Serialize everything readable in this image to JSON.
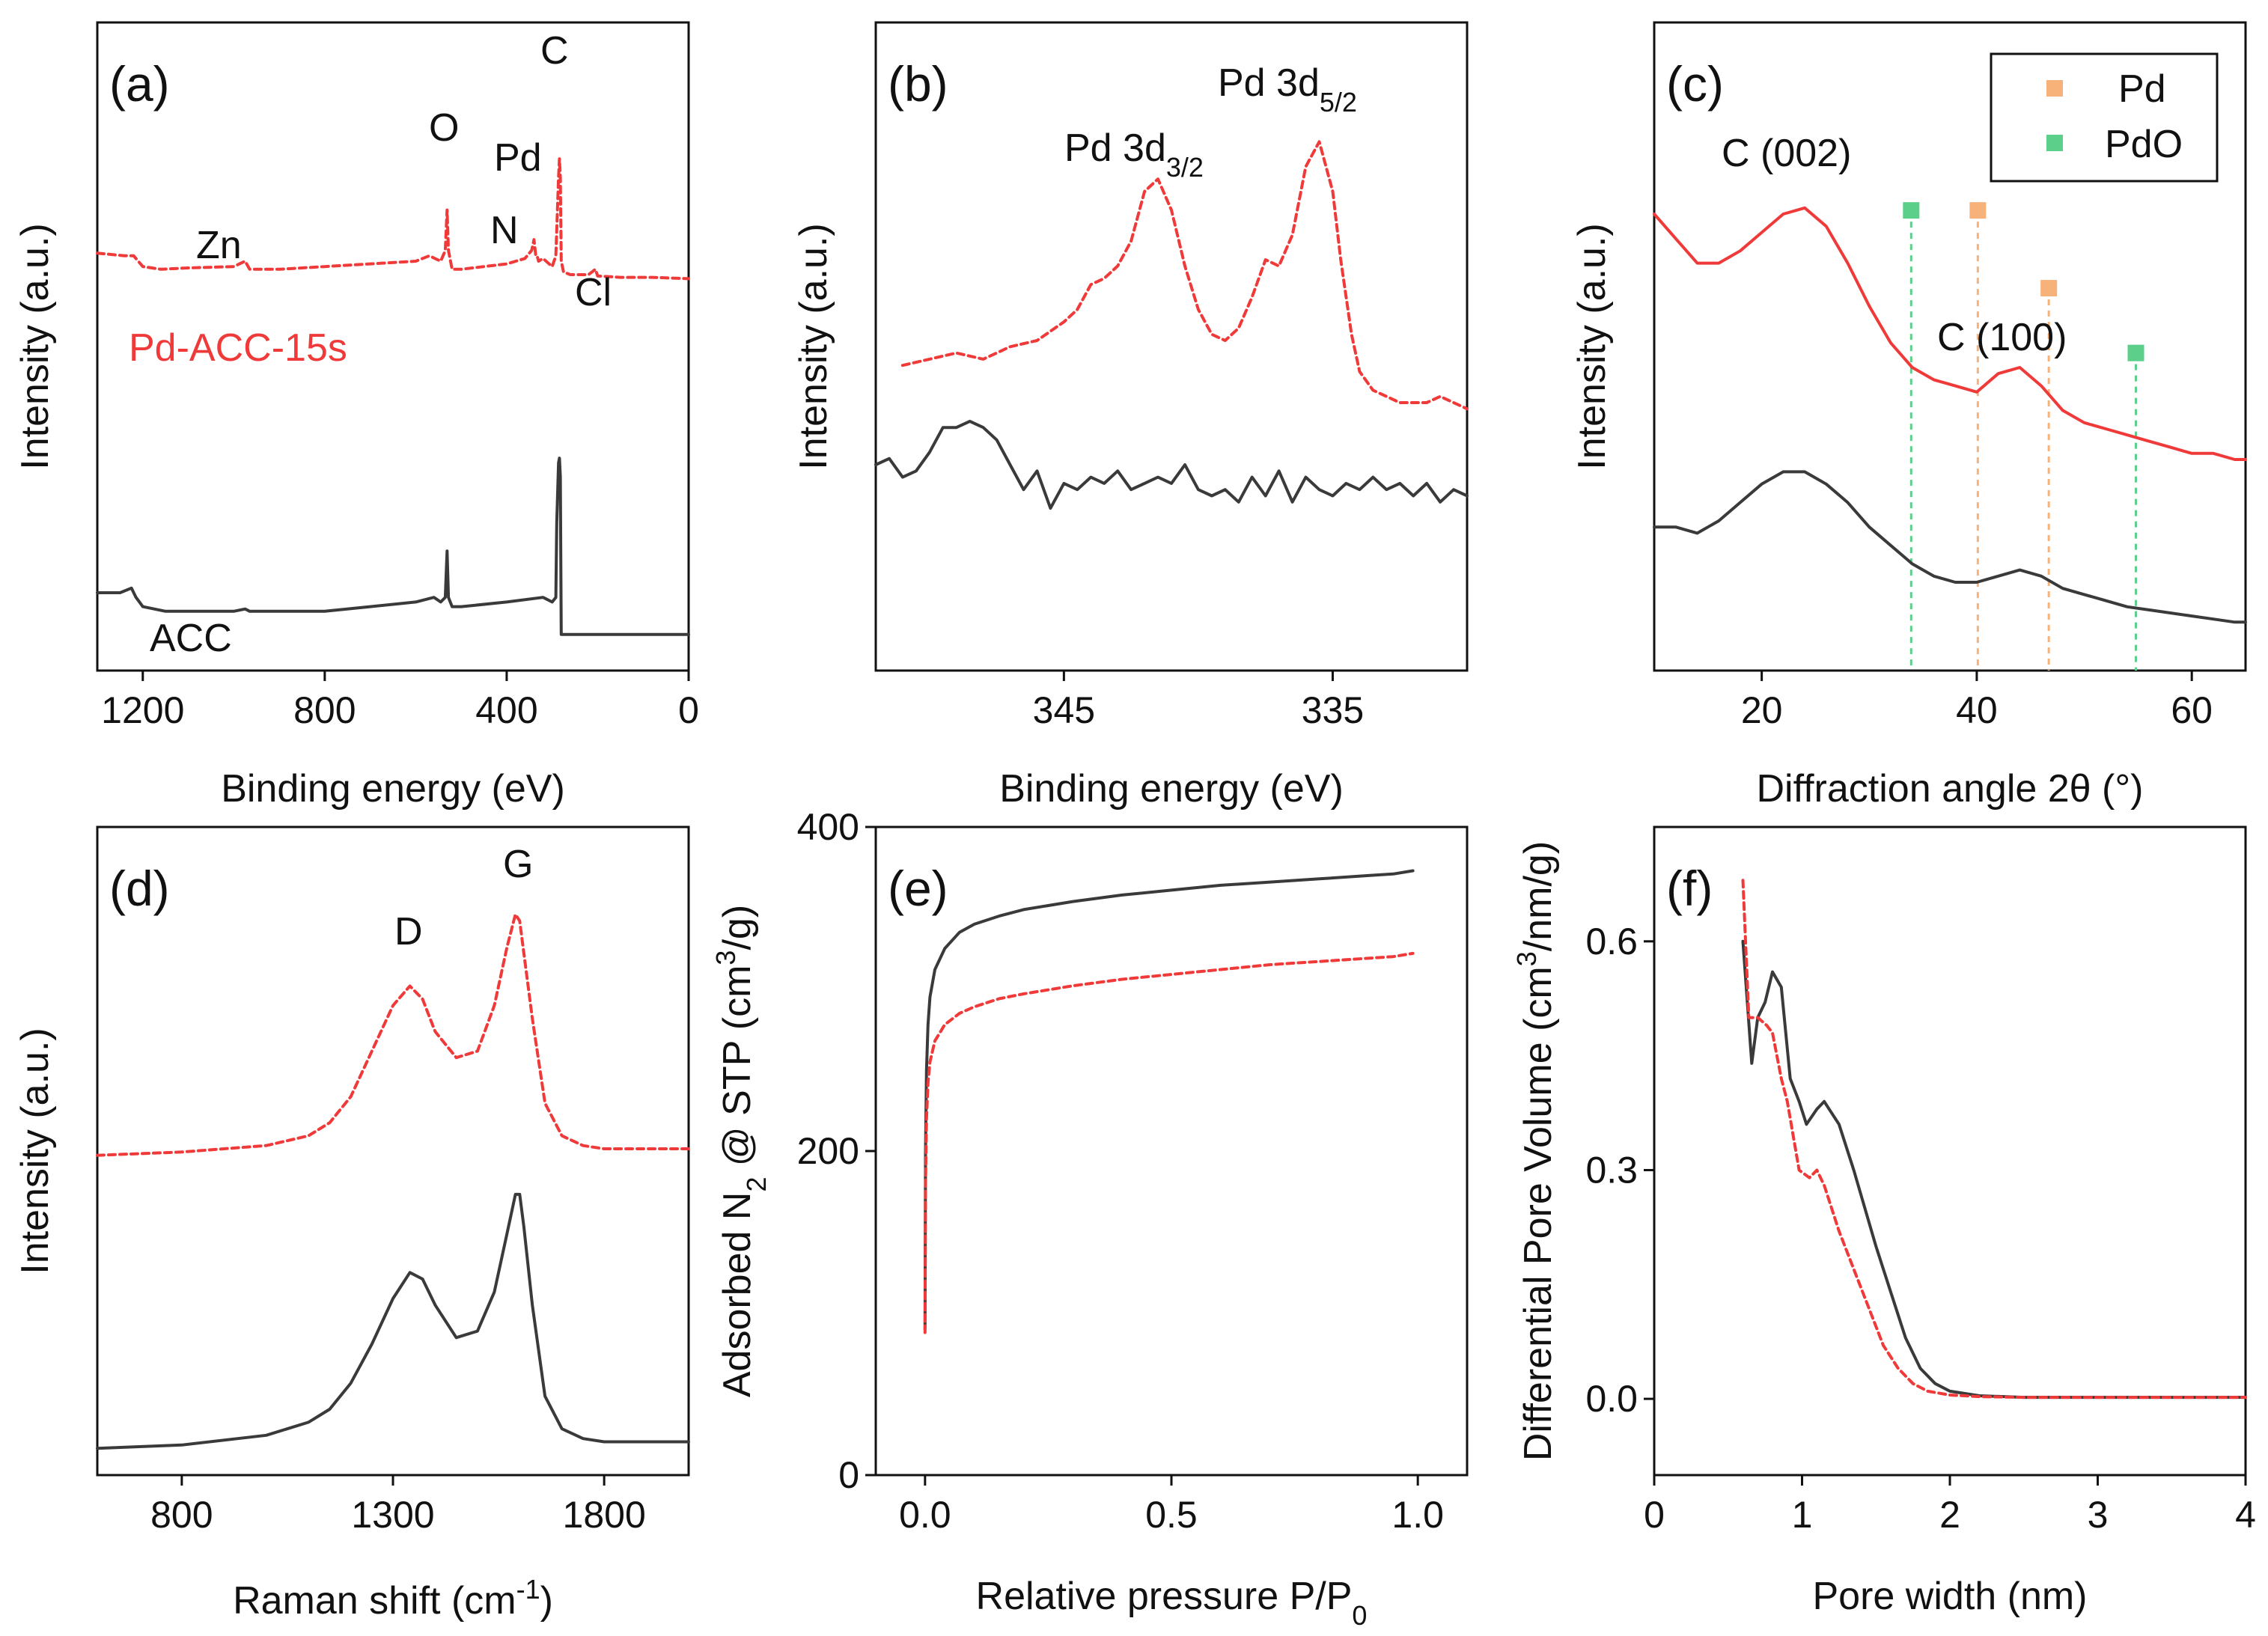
{
  "colors": {
    "pd_acc": "#f03a3a",
    "acc": "#3a3a3a",
    "pd_ref": "#f7b27a",
    "pdo_ref": "#5ccf8a",
    "axis": "#111111"
  },
  "chart_data": [
    {
      "id": "a",
      "type": "line",
      "panel_label": "(a)",
      "xlabel": "Binding energy (eV)",
      "ylabel": "Intensity (a.u.)",
      "xlim": [
        1300,
        0
      ],
      "ylim": [
        0,
        100
      ],
      "xticks": [
        1200,
        800,
        400,
        0
      ],
      "xtick_labels": [
        "1200",
        "800",
        "400",
        "0"
      ],
      "yticks_shown": false,
      "series": [
        {
          "name": "Pd-ACC-15s",
          "style": "dashed",
          "color": "#f03a3a",
          "x": [
            1300,
            1240,
            1220,
            1200,
            1160,
            1100,
            1000,
            975,
            965,
            900,
            800,
            700,
            600,
            570,
            545,
            535,
            531,
            528,
            520,
            500,
            450,
            400,
            360,
            345,
            340,
            336,
            333,
            330,
            320,
            300,
            292,
            286,
            284,
            282,
            280,
            275,
            260,
            220,
            205,
            200,
            150,
            80,
            0
          ],
          "y": [
            63,
            62,
            62,
            58,
            57,
            57.5,
            58,
            60,
            57,
            57,
            58,
            59,
            60,
            62,
            60,
            64,
            79,
            64,
            57,
            57,
            58,
            59,
            61,
            64,
            68,
            62,
            62,
            60,
            61,
            58,
            62,
            91,
            98,
            91,
            60,
            56,
            55,
            55,
            57,
            54.5,
            54,
            54,
            53.5
          ]
        },
        {
          "name": "ACC",
          "style": "solid",
          "color": "#3a3a3a",
          "x": [
            1300,
            1250,
            1225,
            1215,
            1200,
            1150,
            1000,
            975,
            965,
            900,
            800,
            700,
            600,
            560,
            545,
            535,
            531,
            528,
            520,
            500,
            400,
            320,
            300,
            292,
            290,
            286,
            284,
            282,
            280,
            275,
            260,
            200,
            100,
            0
          ],
          "y": [
            15,
            15,
            16,
            14,
            12,
            11,
            11,
            11.5,
            11,
            11,
            11,
            12,
            13,
            14,
            13,
            14,
            24,
            14,
            12,
            12,
            13,
            14,
            13,
            14,
            30,
            43,
            44,
            40,
            6,
            6,
            6,
            6,
            6,
            6
          ]
        }
      ],
      "annotations": [
        "Zn",
        "O",
        "N",
        "Pd",
        "C",
        "Cl",
        "Pd-ACC-15s",
        "ACC"
      ]
    },
    {
      "id": "b",
      "type": "line",
      "panel_label": "(b)",
      "xlabel": "Binding energy (eV)",
      "ylabel": "Intensity (a.u.)",
      "xlim": [
        352,
        330
      ],
      "ylim": [
        0,
        100
      ],
      "xticks": [
        345,
        335
      ],
      "xtick_labels": [
        "345",
        "335"
      ],
      "yticks_shown": false,
      "series": [
        {
          "name": "Pd-ACC-15s",
          "style": "dashed",
          "color": "#f03a3a",
          "x": [
            351,
            350,
            349,
            348,
            347,
            346,
            345,
            344.5,
            344,
            343.5,
            343,
            342.5,
            342,
            341.5,
            341,
            340.5,
            340,
            339.5,
            339,
            338.5,
            338,
            337.5,
            337,
            336.5,
            336,
            335.5,
            335,
            334.7,
            334.3,
            334,
            333.5,
            333,
            332.5,
            332,
            331.5,
            331,
            330.5,
            330
          ],
          "y": [
            46,
            47,
            48,
            47,
            49,
            50,
            53,
            55,
            59,
            60,
            62,
            66,
            74,
            76,
            71,
            62,
            55,
            51,
            50,
            52,
            57,
            63,
            62,
            67,
            78,
            82,
            74,
            63,
            51,
            45,
            42,
            41,
            40,
            40,
            40,
            41,
            40,
            39
          ]
        },
        {
          "name": "ACC",
          "style": "solid",
          "color": "#3a3a3a",
          "x": [
            352,
            351.5,
            351,
            350.5,
            350,
            349.5,
            349,
            348.5,
            348,
            347.5,
            347,
            346.5,
            346,
            345.5,
            345,
            344.5,
            344,
            343.5,
            343,
            342.5,
            342,
            341.5,
            341,
            340.5,
            340,
            339.5,
            339,
            338.5,
            338,
            337.5,
            337,
            336.5,
            336,
            335.5,
            335,
            334.5,
            334,
            333.5,
            333,
            332.5,
            332,
            331.5,
            331,
            330.5,
            330
          ],
          "y": [
            30,
            31,
            28,
            29,
            32,
            36,
            36,
            37,
            36,
            34,
            30,
            26,
            29,
            23,
            27,
            26,
            28,
            27,
            29,
            26,
            27,
            28,
            27,
            30,
            26,
            25,
            26,
            24,
            28,
            25,
            29,
            24,
            28,
            26,
            25,
            27,
            26,
            28,
            26,
            27,
            25,
            27,
            24,
            26,
            25
          ]
        }
      ],
      "annotations": [
        "Pd 3d3/2",
        "Pd 3d5/2"
      ]
    },
    {
      "id": "c",
      "type": "line",
      "panel_label": "(c)",
      "xlabel": "Diffraction angle 2θ (°)",
      "ylabel": "Intensity (a.u.)",
      "xlim": [
        10,
        65
      ],
      "ylim": [
        0,
        100
      ],
      "xticks": [
        20,
        40,
        60
      ],
      "xtick_labels": [
        "20",
        "40",
        "60"
      ],
      "yticks_shown": false,
      "series": [
        {
          "name": "Pd-ACC-15s",
          "style": "solid",
          "color": "#f03a3a",
          "x": [
            10,
            12,
            14,
            16,
            18,
            20,
            22,
            24,
            26,
            28,
            30,
            32,
            34,
            36,
            38,
            40,
            42,
            44,
            46,
            48,
            50,
            52,
            54,
            56,
            58,
            60,
            62,
            64,
            65
          ],
          "y": [
            70,
            66,
            62,
            62,
            64,
            67,
            70,
            71,
            68,
            62,
            55,
            49,
            45,
            43,
            42,
            41,
            44,
            45,
            42,
            38,
            36,
            35,
            34,
            33,
            32,
            31,
            31,
            30,
            30
          ]
        },
        {
          "name": "ACC",
          "style": "solid",
          "color": "#3a3a3a",
          "x": [
            10,
            12,
            14,
            16,
            18,
            20,
            22,
            24,
            26,
            28,
            30,
            32,
            34,
            36,
            38,
            40,
            42,
            44,
            46,
            48,
            50,
            52,
            54,
            56,
            58,
            60,
            62,
            64,
            65
          ],
          "y": [
            19,
            19,
            18,
            20,
            23,
            26,
            28,
            28,
            26,
            23,
            19,
            16,
            13,
            11,
            10,
            10,
            11,
            12,
            11,
            9,
            8,
            7,
            6,
            5.5,
            5,
            4.5,
            4,
            3.5,
            3.5
          ]
        }
      ],
      "reference_lines": [
        {
          "name": "Pd",
          "color": "#f7b27a",
          "positions": [
            40.1,
            46.7
          ],
          "marker_y": [
            71,
            59
          ]
        },
        {
          "name": "PdO",
          "color": "#5ccf8a",
          "positions": [
            33.9,
            54.8
          ],
          "marker_y": [
            71,
            49
          ]
        }
      ],
      "legend": {
        "entries": [
          "Pd",
          "PdO"
        ],
        "location": "top-right"
      },
      "annotations": [
        "C (002)",
        "C (100)"
      ]
    },
    {
      "id": "d",
      "type": "line",
      "panel_label": "(d)",
      "xlabel": "Raman shift (cm⁻¹)",
      "ylabel": "Intensity (a.u.)",
      "xlim": [
        600,
        2000
      ],
      "ylim": [
        0,
        100
      ],
      "xticks": [
        800,
        1300,
        1800
      ],
      "xtick_labels": [
        "800",
        "1300",
        "1800"
      ],
      "yticks_shown": false,
      "series": [
        {
          "name": "Pd-ACC-15s",
          "style": "dashed",
          "color": "#f03a3a",
          "x": [
            600,
            800,
            1000,
            1100,
            1150,
            1200,
            1250,
            1300,
            1340,
            1370,
            1400,
            1450,
            1500,
            1540,
            1570,
            1590,
            1600,
            1610,
            1630,
            1660,
            1700,
            1750,
            1800,
            1900,
            2000
          ],
          "y": [
            49,
            49.5,
            50.5,
            52,
            54,
            58,
            65,
            72,
            75,
            73,
            68,
            64,
            65,
            72,
            81,
            86,
            85,
            80,
            70,
            57,
            52,
            50.5,
            50,
            50,
            50
          ]
        },
        {
          "name": "ACC",
          "style": "solid",
          "color": "#3a3a3a",
          "x": [
            600,
            800,
            1000,
            1100,
            1150,
            1200,
            1250,
            1300,
            1340,
            1370,
            1400,
            1450,
            1500,
            1540,
            1570,
            1590,
            1600,
            1610,
            1630,
            1660,
            1700,
            1750,
            1800,
            1900,
            2000
          ],
          "y": [
            4,
            4.5,
            6,
            8,
            10,
            14,
            20,
            27,
            31,
            30,
            26,
            21,
            22,
            28,
            37,
            43,
            43,
            38,
            26,
            12,
            7,
            5.5,
            5,
            5,
            5
          ]
        }
      ],
      "annotations": [
        "D",
        "G"
      ]
    },
    {
      "id": "e",
      "type": "line",
      "panel_label": "(e)",
      "xlabel": "Relative pressure P/P0",
      "ylabel": "Adsorbed N2 @ STP (cm³/g)",
      "xlim": [
        -0.1,
        1.1
      ],
      "ylim": [
        0,
        400
      ],
      "xticks": [
        0.0,
        0.5,
        1.0
      ],
      "xtick_labels": [
        "0.0",
        "0.5",
        "1.0"
      ],
      "yticks": [
        0,
        200,
        400
      ],
      "ytick_labels": [
        "0",
        "200",
        "400"
      ],
      "series": [
        {
          "name": "ACC",
          "style": "solid",
          "color": "#3a3a3a",
          "x": [
            0,
            0.001,
            0.003,
            0.006,
            0.01,
            0.02,
            0.04,
            0.07,
            0.1,
            0.15,
            0.2,
            0.3,
            0.4,
            0.5,
            0.6,
            0.7,
            0.8,
            0.9,
            0.95,
            0.99
          ],
          "y": [
            90,
            200,
            250,
            278,
            295,
            312,
            325,
            335,
            340,
            345,
            349,
            354,
            358,
            361,
            364,
            366,
            368,
            370,
            371,
            373
          ]
        },
        {
          "name": "Pd-ACC-15s",
          "style": "dashed",
          "color": "#f03a3a",
          "x": [
            0,
            0.001,
            0.003,
            0.006,
            0.01,
            0.02,
            0.04,
            0.07,
            0.1,
            0.15,
            0.2,
            0.3,
            0.4,
            0.5,
            0.6,
            0.7,
            0.8,
            0.9,
            0.95,
            0.99
          ],
          "y": [
            88,
            180,
            220,
            242,
            255,
            268,
            278,
            285,
            289,
            294,
            297,
            302,
            306,
            309,
            312,
            315,
            317,
            319,
            320,
            322
          ]
        }
      ]
    },
    {
      "id": "f",
      "type": "line",
      "panel_label": "(f)",
      "xlabel": "Pore width (nm)",
      "ylabel": "Differential Pore Volume (cm³/nm/g)",
      "xlim": [
        0,
        4
      ],
      "ylim": [
        -0.1,
        0.75
      ],
      "xticks": [
        0,
        1,
        2,
        3,
        4
      ],
      "xtick_labels": [
        "0",
        "1",
        "2",
        "3",
        "4"
      ],
      "yticks": [
        0.0,
        0.3,
        0.6
      ],
      "ytick_labels": [
        "0.0",
        "0.3",
        "0.6"
      ],
      "series": [
        {
          "name": "ACC",
          "style": "solid",
          "color": "#3a3a3a",
          "x": [
            0.6,
            0.66,
            0.7,
            0.75,
            0.8,
            0.86,
            0.92,
            0.98,
            1.03,
            1.1,
            1.15,
            1.25,
            1.35,
            1.5,
            1.6,
            1.7,
            1.8,
            1.9,
            2.0,
            2.2,
            2.5,
            3.0,
            3.5,
            4.0
          ],
          "y": [
            0.6,
            0.44,
            0.5,
            0.52,
            0.56,
            0.54,
            0.42,
            0.39,
            0.36,
            0.38,
            0.39,
            0.36,
            0.3,
            0.2,
            0.14,
            0.08,
            0.04,
            0.02,
            0.01,
            0.004,
            0.002,
            0.002,
            0.002,
            0.002
          ]
        },
        {
          "name": "Pd-ACC-15s",
          "style": "dashed",
          "color": "#f03a3a",
          "x": [
            0.6,
            0.64,
            0.7,
            0.76,
            0.8,
            0.86,
            0.9,
            0.98,
            1.05,
            1.1,
            1.15,
            1.25,
            1.35,
            1.45,
            1.55,
            1.65,
            1.75,
            1.85,
            2.0,
            2.2,
            2.5,
            3.0,
            3.5,
            4.0
          ],
          "y": [
            0.68,
            0.5,
            0.5,
            0.49,
            0.48,
            0.42,
            0.39,
            0.3,
            0.29,
            0.3,
            0.28,
            0.22,
            0.17,
            0.12,
            0.07,
            0.04,
            0.02,
            0.01,
            0.005,
            0.003,
            0.002,
            0.002,
            0.002,
            0.002
          ]
        }
      ]
    }
  ]
}
